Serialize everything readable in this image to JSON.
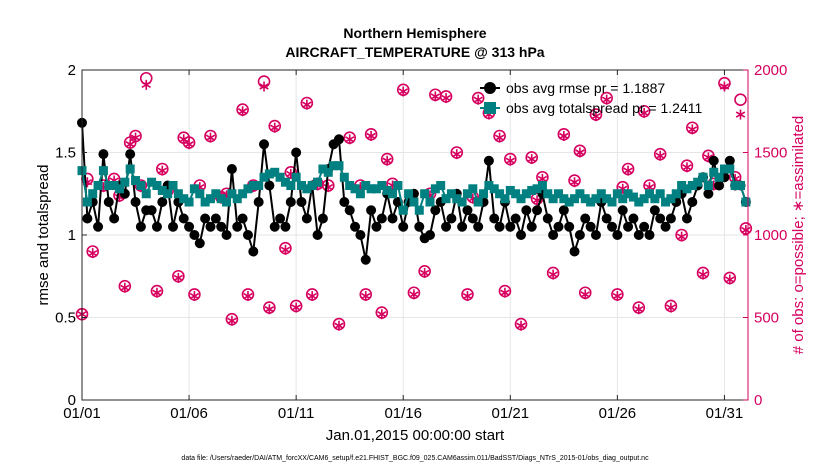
{
  "chart_data": {
    "type": "line",
    "title": "Northern Hemisphere",
    "subtitle": "AIRCRAFT_TEMPERATURE @ 313 hPa",
    "xlabel": "Jan.01,2015 00:00:00 start",
    "ylabel": "rmse and totalspread",
    "ylabel_right": "# of obs: o=possible; ∗=assimilated",
    "footer": "data file: /Users/raeder/DAI/ATM_forcXX/CAM6_setup/f.e21.FHIST_BGC.f09_025.CAM6assim.011/BadSST/Diags_NTrS_2015-01/obs_diag_output.nc",
    "xlim": [
      1,
      32.1
    ],
    "ylim": [
      0,
      2
    ],
    "ylim_right": [
      0,
      2000
    ],
    "x_ticks": [
      1,
      6,
      11,
      16,
      21,
      26,
      31
    ],
    "x_tick_labels": [
      "01/01",
      "01/06",
      "01/11",
      "01/16",
      "01/21",
      "01/26",
      "01/31"
    ],
    "y_ticks": [
      0,
      0.5,
      1,
      1.5,
      2
    ],
    "y_tick_labels": [
      "0",
      "0.5",
      "1",
      "1.5",
      "2"
    ],
    "y_ticks_right": [
      0,
      500,
      1000,
      1500,
      2000
    ],
    "y_tick_labels_right": [
      "0",
      "500",
      "1000",
      "1500",
      "2000"
    ],
    "grid": true,
    "legend_position": "top-right",
    "colors": {
      "rmse": "#000000",
      "spread": "#008080",
      "obs": "#d6005f",
      "grid": "#e6e6e6",
      "right_axis": "#d6005f"
    },
    "x": [
      1.0,
      1.25,
      1.5,
      1.75,
      2.0,
      2.25,
      2.5,
      2.75,
      3.0,
      3.25,
      3.5,
      3.75,
      4.0,
      4.25,
      4.5,
      4.75,
      5.0,
      5.25,
      5.5,
      5.75,
      6.0,
      6.25,
      6.5,
      6.75,
      7.0,
      7.25,
      7.5,
      7.75,
      8.0,
      8.25,
      8.5,
      8.75,
      9.0,
      9.25,
      9.5,
      9.75,
      10.0,
      10.25,
      10.5,
      10.75,
      11.0,
      11.25,
      11.5,
      11.75,
      12.0,
      12.25,
      12.5,
      12.75,
      13.0,
      13.25,
      13.5,
      13.75,
      14.0,
      14.25,
      14.5,
      14.75,
      15.0,
      15.25,
      15.5,
      15.75,
      16.0,
      16.25,
      16.5,
      16.75,
      17.0,
      17.25,
      17.5,
      17.75,
      18.0,
      18.25,
      18.5,
      18.75,
      19.0,
      19.25,
      19.5,
      19.75,
      20.0,
      20.25,
      20.5,
      20.75,
      21.0,
      21.25,
      21.5,
      21.75,
      22.0,
      22.25,
      22.5,
      22.75,
      23.0,
      23.25,
      23.5,
      23.75,
      24.0,
      24.25,
      24.5,
      24.75,
      25.0,
      25.25,
      25.5,
      25.75,
      26.0,
      26.25,
      26.5,
      26.75,
      27.0,
      27.25,
      27.5,
      27.75,
      28.0,
      28.25,
      28.5,
      28.75,
      29.0,
      29.25,
      29.5,
      29.75,
      30.0,
      30.25,
      30.5,
      30.75,
      31.0,
      31.25,
      31.5,
      31.75,
      32.0
    ],
    "series": [
      {
        "name": "obs avg rmse pr = 1.1887",
        "marker": "filled-circle",
        "values": [
          1.68,
          1.1,
          1.2,
          1.05,
          1.49,
          1.2,
          1.1,
          1.3,
          1.25,
          1.49,
          1.2,
          1.05,
          1.15,
          1.15,
          1.05,
          1.2,
          1.3,
          1.05,
          1.2,
          1.1,
          1.05,
          1.0,
          0.95,
          1.1,
          1.05,
          1.1,
          1.05,
          1.0,
          1.4,
          1.05,
          1.1,
          1.0,
          0.9,
          1.2,
          1.55,
          1.3,
          1.05,
          1.1,
          1.05,
          1.2,
          1.5,
          1.2,
          1.1,
          1.3,
          1.0,
          1.1,
          1.4,
          1.55,
          1.58,
          1.2,
          1.15,
          1.05,
          1.0,
          0.85,
          1.15,
          1.05,
          1.1,
          1.25,
          1.1,
          1.2,
          1.05,
          1.2,
          1.25,
          1.05,
          0.98,
          1.0,
          1.15,
          1.2,
          1.05,
          1.1,
          1.25,
          1.05,
          1.15,
          1.1,
          1.05,
          1.2,
          1.45,
          1.1,
          1.05,
          1.2,
          1.05,
          1.1,
          1.0,
          1.15,
          1.05,
          1.15,
          1.25,
          1.1,
          1.0,
          1.05,
          1.15,
          1.05,
          0.9,
          1.0,
          1.1,
          1.05,
          1.0,
          1.2,
          1.1,
          1.05,
          1.0,
          1.15,
          1.05,
          1.1,
          1.0,
          1.05,
          1.0,
          1.15,
          1.1,
          1.05,
          1.1,
          1.2,
          1.25,
          1.1,
          1.2,
          1.3,
          1.35,
          1.25,
          1.45,
          1.3,
          1.35,
          1.45,
          1.3,
          1.3,
          1.2
        ]
      },
      {
        "name": "obs avg totalspread pr = 1.2411",
        "marker": "filled-square",
        "values": [
          1.39,
          1.2,
          1.25,
          1.3,
          1.39,
          1.3,
          1.3,
          1.28,
          1.32,
          1.4,
          1.33,
          1.3,
          1.25,
          1.32,
          1.3,
          1.27,
          1.25,
          1.3,
          1.25,
          1.22,
          1.2,
          1.28,
          1.25,
          1.2,
          1.22,
          1.25,
          1.22,
          1.2,
          1.25,
          1.22,
          1.25,
          1.28,
          1.3,
          1.3,
          1.35,
          1.37,
          1.38,
          1.35,
          1.32,
          1.3,
          1.35,
          1.3,
          1.28,
          1.3,
          1.32,
          1.4,
          1.38,
          1.42,
          1.42,
          1.35,
          1.3,
          1.28,
          1.25,
          1.3,
          1.28,
          1.28,
          1.3,
          1.27,
          1.25,
          1.3,
          1.15,
          1.25,
          1.2,
          1.15,
          1.25,
          1.2,
          1.28,
          1.3,
          1.22,
          1.25,
          1.22,
          1.2,
          1.25,
          1.28,
          1.2,
          1.25,
          1.3,
          1.28,
          1.25,
          1.22,
          1.27,
          1.25,
          1.22,
          1.25,
          1.27,
          1.28,
          1.3,
          1.25,
          1.22,
          1.25,
          1.22,
          1.2,
          1.22,
          1.25,
          1.22,
          1.2,
          1.22,
          1.25,
          1.22,
          1.2,
          1.25,
          1.22,
          1.25,
          1.23,
          1.2,
          1.22,
          1.25,
          1.22,
          1.25,
          1.2,
          1.22,
          1.25,
          1.3,
          1.28,
          1.3,
          1.32,
          1.35,
          1.3,
          1.38,
          1.35,
          1.4,
          1.4,
          1.3,
          1.3,
          1.2
        ]
      }
    ],
    "obs_count": {
      "x": [
        1.0,
        1.25,
        1.5,
        2.0,
        2.5,
        2.75,
        3.0,
        3.25,
        3.5,
        3.75,
        4.0,
        4.5,
        4.75,
        5.0,
        5.5,
        5.75,
        6.0,
        6.25,
        6.5,
        7.0,
        7.5,
        7.75,
        8.0,
        8.5,
        8.75,
        9.0,
        9.5,
        9.75,
        10.0,
        10.5,
        10.75,
        11.0,
        11.5,
        11.75,
        12.0,
        12.5,
        13.0,
        13.5,
        14.0,
        14.25,
        14.5,
        15.0,
        15.25,
        15.5,
        16.0,
        16.5,
        17.0,
        17.25,
        17.5,
        18.0,
        18.5,
        19.0,
        19.25,
        19.5,
        20.0,
        20.5,
        20.75,
        21.0,
        21.5,
        22.0,
        22.25,
        22.5,
        23.0,
        23.5,
        24.0,
        24.25,
        24.5,
        25.0,
        25.5,
        26.0,
        26.25,
        26.5,
        27.0,
        27.25,
        27.5,
        28.0,
        28.5,
        29.0,
        29.25,
        29.5,
        30.0,
        30.25,
        30.5,
        31.0,
        31.25,
        31.5,
        31.75,
        32.0
      ],
      "possible": [
        520,
        1340,
        900,
        1300,
        1340,
        1240,
        690,
        1560,
        1600,
        1300,
        1950,
        660,
        1400,
        1270,
        750,
        1590,
        1560,
        640,
        1300,
        1600,
        1230,
        1250,
        490,
        1760,
        640,
        1300,
        1930,
        560,
        1660,
        920,
        1380,
        570,
        1800,
        640,
        1310,
        1300,
        460,
        1590,
        1300,
        640,
        1610,
        530,
        1460,
        1310,
        1880,
        650,
        780,
        1250,
        1850,
        1840,
        1500,
        640,
        1230,
        1830,
        1740,
        1600,
        660,
        1460,
        460,
        1470,
        1220,
        1350,
        770,
        1610,
        1330,
        1510,
        650,
        1730,
        1830,
        640,
        1290,
        1400,
        560,
        1750,
        1300,
        1490,
        570,
        1000,
        1420,
        1650,
        770,
        1480,
        1310,
        1920,
        740,
        1350,
        1820,
        1040
      ],
      "assimilated": [
        520,
        1320,
        890,
        1290,
        1330,
        1230,
        680,
        1550,
        1590,
        1290,
        1910,
        650,
        1390,
        1260,
        740,
        1580,
        1550,
        630,
        1290,
        1590,
        1220,
        1240,
        480,
        1750,
        630,
        1290,
        1900,
        550,
        1650,
        910,
        1370,
        560,
        1790,
        630,
        1300,
        1290,
        450,
        1580,
        1290,
        630,
        1600,
        520,
        1450,
        1300,
        1870,
        640,
        770,
        1240,
        1840,
        1830,
        1490,
        630,
        1220,
        1820,
        1730,
        1590,
        650,
        1450,
        450,
        1460,
        1210,
        1340,
        760,
        1600,
        1320,
        1500,
        640,
        1720,
        1820,
        630,
        1280,
        1390,
        550,
        1740,
        1290,
        1480,
        560,
        990,
        1410,
        1640,
        760,
        1470,
        1300,
        1900,
        730,
        1340,
        1730,
        1030
      ]
    }
  }
}
